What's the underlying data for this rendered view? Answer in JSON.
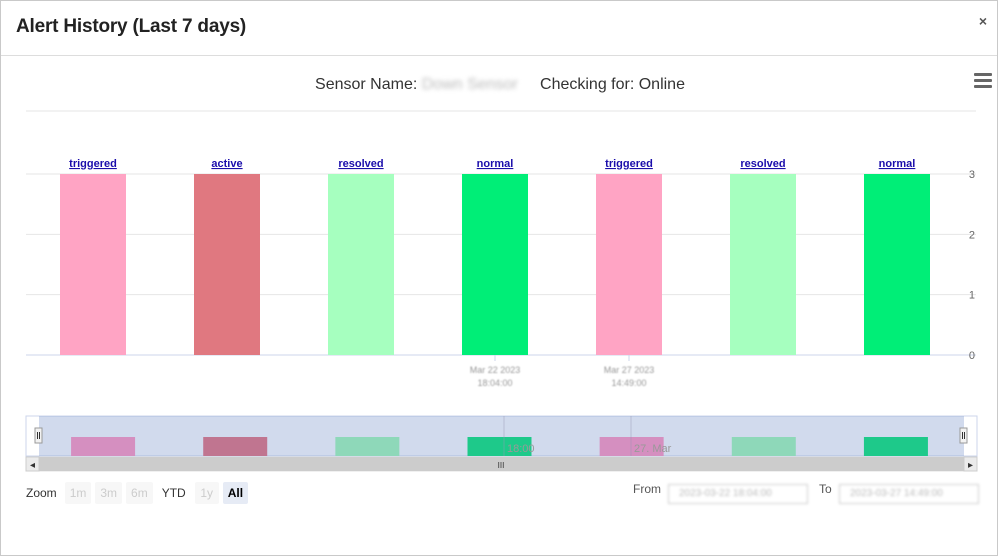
{
  "modal": {
    "title": "Alert History (Last 7 days)",
    "close_label": "×"
  },
  "chart_data": {
    "type": "bar",
    "title": "Sensor Name: Down Sensor    Checking for: Online",
    "title_prefix": "Sensor Name:",
    "sensor_name": "Down Sensor",
    "checking_for": "Checking for: Online",
    "categories": [
      "triggered",
      "active",
      "resolved",
      "normal",
      "triggered",
      "resolved",
      "normal"
    ],
    "values": [
      3,
      3,
      3,
      3,
      3,
      3,
      3
    ],
    "colors": [
      "#ffa4c4",
      "#e07880",
      "#a6ffbf",
      "#00ee77",
      "#ffa4c4",
      "#a6ffbf",
      "#00ee77"
    ],
    "ylim": [
      0,
      3
    ],
    "yticks": [
      0,
      1,
      2,
      3
    ],
    "y_axis_side": "right",
    "grid": true,
    "xticks": [
      {
        "date": "Mar 22 2023",
        "time": "18:04:00"
      },
      {
        "date": "Mar 27 2023",
        "time": "14:49:00"
      }
    ],
    "navigator": {
      "labels": [
        "18:00",
        "27. Mar"
      ],
      "colors": [
        "#d58fc0",
        "#c07590",
        "#8ed8b9",
        "#1ec98a",
        "#d58fc0",
        "#8ed8b9",
        "#1ec98a"
      ]
    }
  },
  "range_selector": {
    "zoom_label": "Zoom",
    "buttons": [
      {
        "label": "1m",
        "state": "disabled"
      },
      {
        "label": "3m",
        "state": "disabled"
      },
      {
        "label": "6m",
        "state": "disabled"
      },
      {
        "label": "YTD",
        "state": "enabled"
      },
      {
        "label": "1y",
        "state": "disabled"
      },
      {
        "label": "All",
        "state": "active"
      }
    ],
    "from_label": "From",
    "to_label": "To",
    "from_value": "2023-03-22 18:04:00",
    "to_value": "2023-03-27 14:49:00"
  },
  "icons": {
    "menu": "hamburger-menu-icon",
    "close": "close-icon",
    "scroll_left": "arrow-left-icon",
    "scroll_right": "arrow-right-icon"
  },
  "scrollbar": {
    "left_arrow": "◂",
    "right_arrow": "▸",
    "grip": "III"
  }
}
